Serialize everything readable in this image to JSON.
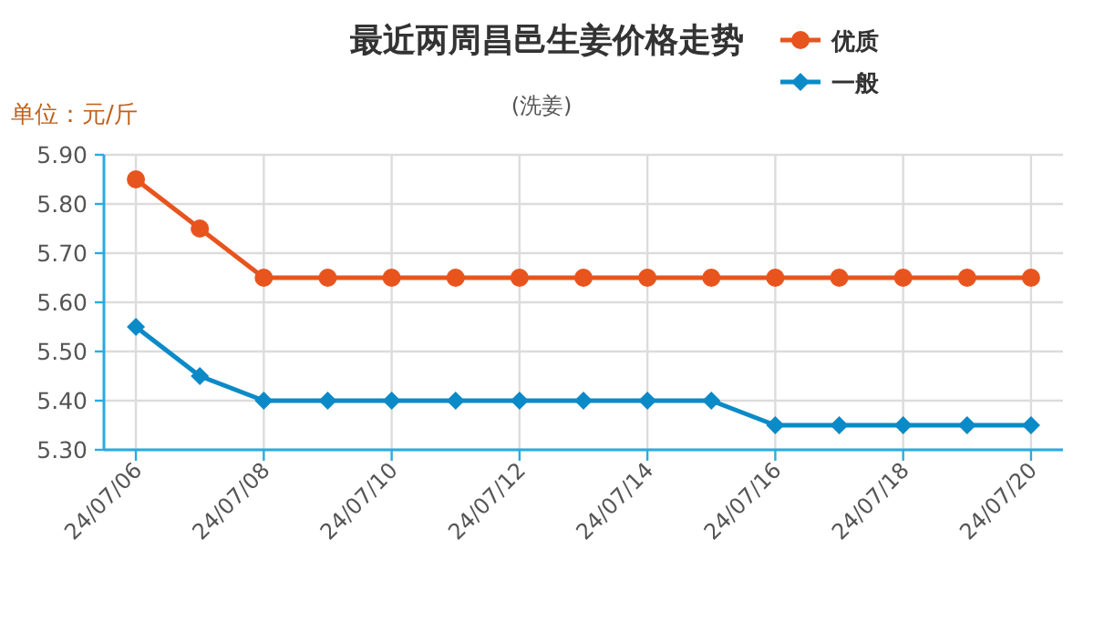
{
  "chart_data": {
    "type": "line",
    "title": "最近两周昌邑生姜价格走势",
    "subtitle": "(洗姜)",
    "ylabel": "单位：元/斤",
    "categories": [
      "24/07/06",
      null,
      "24/07/08",
      null,
      "24/07/10",
      null,
      "24/07/12",
      null,
      "24/07/14",
      null,
      "24/07/16",
      null,
      "24/07/18",
      null,
      "24/07/20"
    ],
    "series": [
      {
        "name": "优质",
        "color": "#e8541e",
        "marker": "circle",
        "values": [
          5.85,
          5.75,
          5.65,
          5.65,
          5.65,
          5.65,
          5.65,
          5.65,
          5.65,
          5.65,
          5.65,
          5.65,
          5.65,
          5.65,
          5.65
        ]
      },
      {
        "name": "一般",
        "color": "#0b8ac8",
        "marker": "diamond",
        "values": [
          5.55,
          5.45,
          5.4,
          5.4,
          5.4,
          5.4,
          5.4,
          5.4,
          5.4,
          5.4,
          5.35,
          5.35,
          5.35,
          5.35,
          5.35
        ]
      }
    ],
    "ylim": [
      5.3,
      5.9
    ],
    "yticks": [
      {
        "value": 5.3,
        "label": "5.30"
      },
      {
        "value": 5.4,
        "label": "5.40"
      },
      {
        "value": 5.5,
        "label": "5.50"
      },
      {
        "value": 5.6,
        "label": "5.60"
      },
      {
        "value": 5.7,
        "label": "5.70"
      },
      {
        "value": 5.8,
        "label": "5.80"
      },
      {
        "value": 5.9,
        "label": "5.90"
      }
    ],
    "grid": true,
    "legend": "top right",
    "line_style": "solid"
  }
}
